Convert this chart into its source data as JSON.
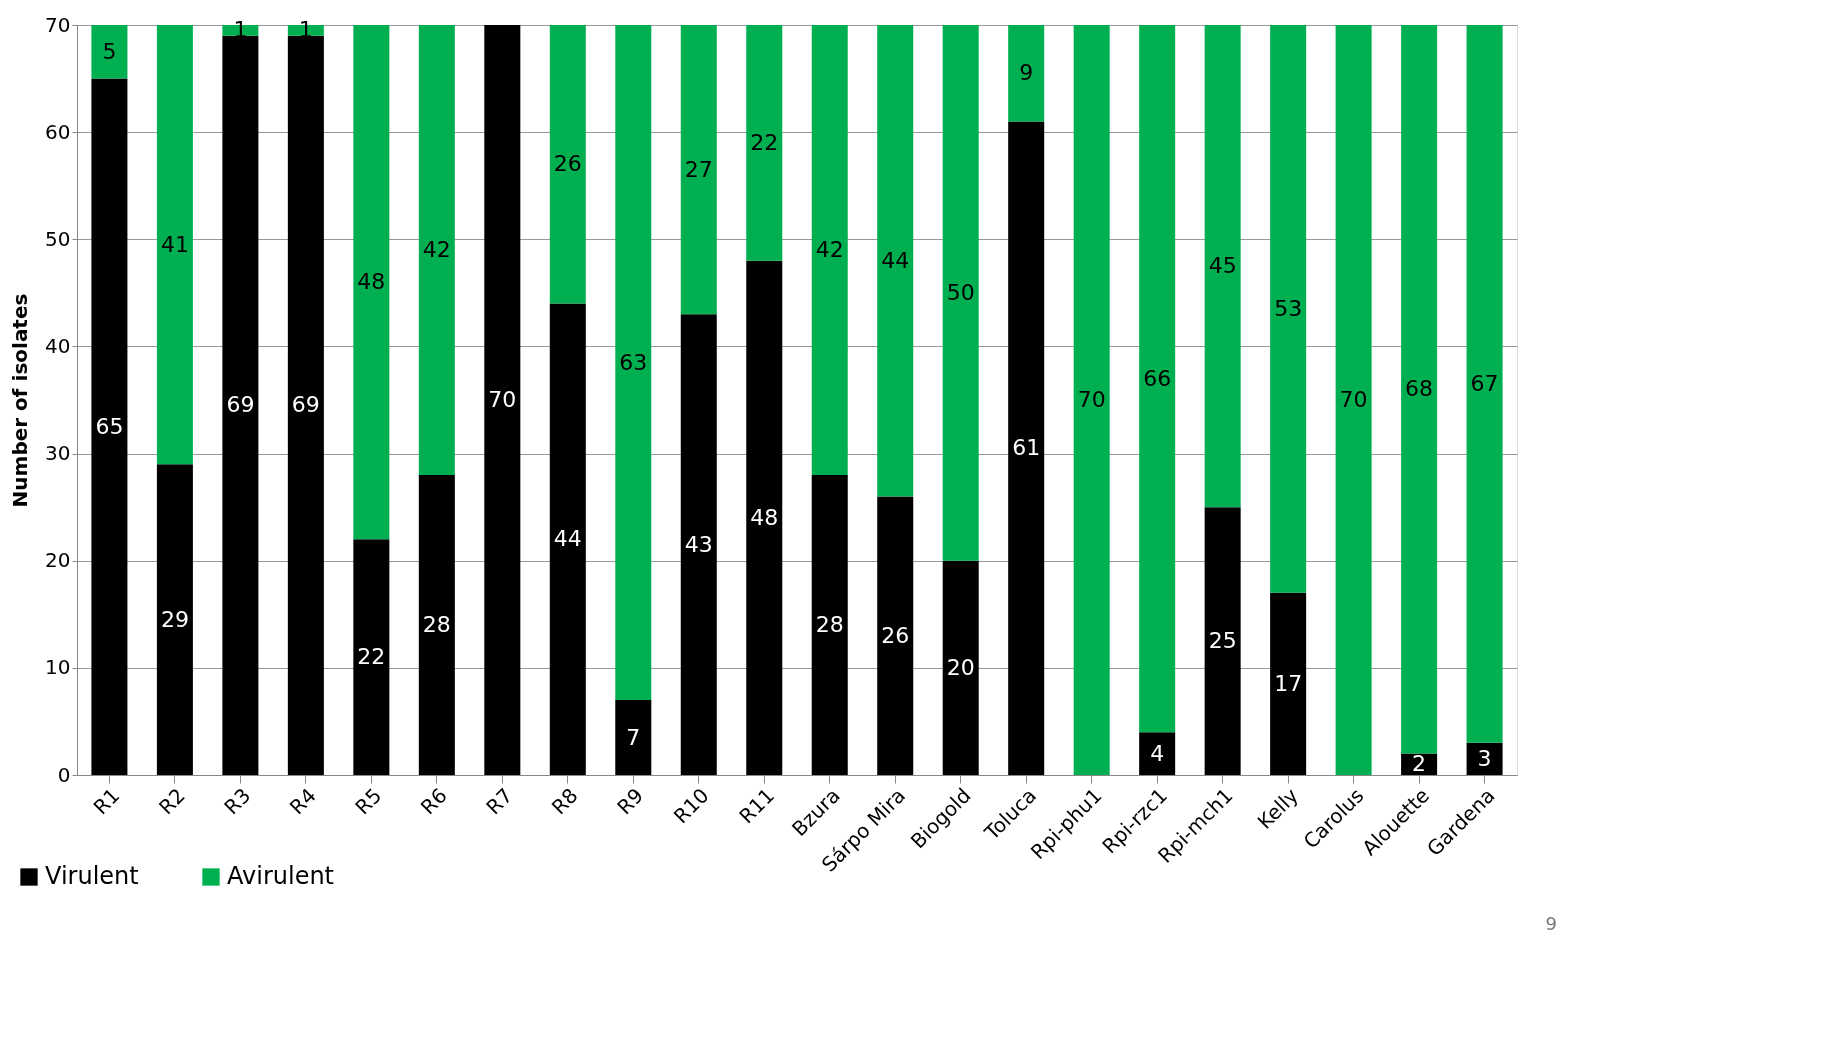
{
  "chart_data": {
    "type": "bar",
    "stacked": true,
    "ylabel": "Number of isolates",
    "categories": [
      "R1",
      "R2",
      "R3",
      "R4",
      "R5",
      "R6",
      "R7",
      "R8",
      "R9",
      "R10",
      "R11",
      "Bzura",
      "Sárpo Mira",
      "Biogold",
      "Toluca",
      "Rpi-phu1",
      "Rpi-rzc1",
      "Rpi-mch1",
      "Kelly",
      "Carolus",
      "Alouette",
      "Gardena"
    ],
    "series": [
      {
        "name": "Virulent",
        "color": "#000000",
        "values": [
          65,
          29,
          69,
          69,
          22,
          28,
          70,
          44,
          7,
          43,
          48,
          28,
          26,
          20,
          61,
          0,
          4,
          25,
          17,
          0,
          2,
          3
        ],
        "value_labels": [
          "65",
          "29",
          "69",
          "69",
          "22",
          "28",
          "70",
          "44",
          "7",
          "43",
          "48",
          "28",
          "26",
          "20",
          "61",
          null,
          "4",
          "25",
          "17",
          null,
          "2",
          "3"
        ]
      },
      {
        "name": "Avirulent",
        "color": "#00b050",
        "values": [
          5,
          41,
          1,
          1,
          48,
          42,
          0,
          26,
          63,
          27,
          22,
          42,
          44,
          50,
          9,
          70,
          66,
          45,
          53,
          70,
          68,
          67
        ],
        "value_labels": [
          "5",
          "41",
          "1",
          "1",
          "48",
          "42",
          null,
          "26",
          "63",
          "27",
          "22",
          "42",
          "44",
          "50",
          "9",
          "70",
          "66",
          "45",
          "53",
          "70",
          "68",
          "67"
        ]
      }
    ],
    "ylim": [
      0,
      70
    ],
    "yticks": [
      0,
      10,
      20,
      30,
      40,
      50,
      60,
      70
    ],
    "grid": "y",
    "legend": "bottom left",
    "annotations": [
      "9"
    ]
  }
}
